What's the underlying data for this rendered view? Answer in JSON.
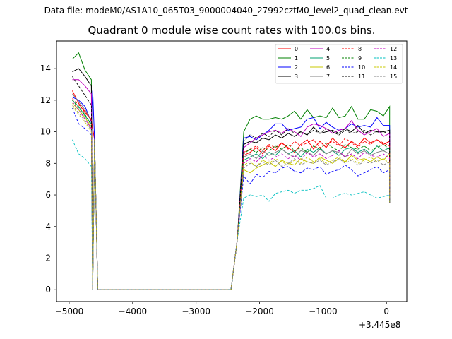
{
  "figure": {
    "suptitle": "Data file: modeM0/AS1A10_065T03_9000004040_27992cztM0_level2_quad_clean.evt",
    "offset_text": "+3.445e8"
  },
  "chart_data": {
    "type": "line",
    "title": "Quadrant 0 module wise count rates with 100.0s bins.",
    "xlabel": "",
    "ylabel": "",
    "x_offset": 344500000,
    "xlim": [
      -5200,
      320
    ],
    "ylim": [
      -0.75,
      15.75
    ],
    "xticks": [
      -5000,
      -4000,
      -3000,
      -2000,
      -1000,
      0
    ],
    "xtick_labels": [
      "−5000",
      "−4000",
      "−3000",
      "−2000",
      "−1000",
      "0"
    ],
    "yticks": [
      0,
      2,
      4,
      6,
      8,
      10,
      12,
      14
    ],
    "ytick_labels": [
      "0",
      "2",
      "4",
      "6",
      "8",
      "10",
      "12",
      "14"
    ],
    "grid": false,
    "legend_position": "top-right",
    "legend_columns": 4,
    "series": [
      {
        "name": "0",
        "color": "#ff0000",
        "dash": "solid",
        "early": [
          12.6,
          11.8,
          11.2,
          10.8,
          10.2
        ],
        "late": [
          8.5,
          8.7,
          9.0,
          8.6,
          9.1,
          8.8,
          9.3,
          9.0,
          8.7,
          9.2,
          9.5,
          8.9,
          9.4,
          9.0,
          9.6,
          9.2,
          9.0,
          9.4,
          9.1,
          9.6,
          9.3,
          9.5,
          9.2,
          9.4,
          9.3,
          9.3
        ]
      },
      {
        "name": "1",
        "color": "#008000",
        "dash": "solid",
        "early": [
          14.6,
          15.0,
          13.9,
          13.3,
          0.0
        ],
        "late": [
          10.0,
          10.8,
          11.0,
          10.8,
          10.8,
          10.9,
          10.8,
          11.0,
          11.3,
          10.8,
          11.4,
          10.9,
          11.0,
          10.9,
          11.5,
          10.9,
          11.0,
          11.6,
          10.8,
          10.8,
          11.4,
          11.3,
          11.0,
          11.6,
          11.2,
          10.9
        ]
      },
      {
        "name": "2",
        "color": "#0000ff",
        "dash": "solid",
        "early": [
          12.2,
          12.0,
          11.6,
          10.6,
          12.6
        ],
        "late": [
          9.6,
          9.7,
          9.5,
          9.8,
          10.1,
          10.5,
          10.5,
          10.1,
          10.2,
          10.3,
          10.8,
          10.9,
          10.2,
          10.6,
          10.3,
          10.1,
          10.2,
          10.5,
          10.3,
          10.4,
          10.3,
          10.9,
          10.4,
          10.4,
          10.4,
          10.4
        ]
      },
      {
        "name": "3",
        "color": "#000000",
        "dash": "solid",
        "early": [
          13.8,
          14.0,
          13.5,
          12.9,
          0.0
        ],
        "late": [
          9.2,
          9.4,
          9.3,
          9.6,
          9.5,
          9.8,
          9.6,
          9.9,
          9.7,
          10.0,
          9.8,
          10.3,
          9.9,
          10.0,
          10.1,
          9.9,
          10.2,
          10.0,
          10.4,
          9.9,
          10.1,
          10.0,
          10.0,
          10.1,
          10.0,
          10.0
        ]
      },
      {
        "name": "4",
        "color": "#bf00bf",
        "dash": "solid",
        "early": [
          13.3,
          13.3,
          12.9,
          12.4,
          0.0
        ],
        "late": [
          9.0,
          9.3,
          9.6,
          9.8,
          10.0,
          10.1,
          9.9,
          10.2,
          10.0,
          9.7,
          10.3,
          10.5,
          10.4,
          10.2,
          9.9,
          10.1,
          10.2,
          10.7,
          10.1,
          9.8,
          10.0,
          10.2,
          9.7,
          9.9,
          9.8,
          9.8
        ]
      },
      {
        "name": "5",
        "color": "#00a070",
        "dash": "solid",
        "early": [
          12.0,
          11.6,
          11.0,
          10.5,
          0.0
        ],
        "late": [
          8.2,
          8.4,
          8.6,
          8.3,
          8.7,
          8.5,
          8.9,
          8.6,
          8.8,
          8.4,
          8.9,
          8.7,
          9.0,
          8.6,
          8.8,
          8.5,
          8.9,
          9.0,
          8.7,
          8.9,
          8.6,
          9.1,
          8.8,
          9.0,
          8.7,
          8.7
        ]
      },
      {
        "name": "6",
        "color": "#c8c800",
        "dash": "solid",
        "early": [
          11.8,
          11.4,
          10.9,
          10.3,
          0.0
        ],
        "late": [
          7.6,
          7.4,
          7.7,
          7.9,
          8.1,
          7.8,
          8.2,
          8.0,
          7.9,
          8.3,
          8.1,
          8.0,
          8.4,
          8.2,
          8.0,
          8.3,
          8.1,
          8.5,
          8.2,
          8.3,
          8.1,
          8.4,
          8.2,
          8.6,
          8.3,
          8.3
        ]
      },
      {
        "name": "7",
        "color": "#808080",
        "dash": "solid",
        "early": [
          12.4,
          11.9,
          11.4,
          10.7,
          0.0
        ],
        "late": [
          8.4,
          8.6,
          8.3,
          8.8,
          8.5,
          8.7,
          8.9,
          8.6,
          8.4,
          8.8,
          8.7,
          8.5,
          8.9,
          8.6,
          8.8,
          8.7,
          8.4,
          8.9,
          8.6,
          8.8,
          8.5,
          8.7,
          8.8,
          8.6,
          8.7,
          8.7
        ]
      },
      {
        "name": "8",
        "color": "#ff0000",
        "dash": "dashed",
        "early": [
          12.1,
          11.7,
          11.3,
          10.7,
          0.0
        ],
        "late": [
          8.7,
          8.9,
          9.1,
          8.8,
          9.2,
          9.0,
          9.3,
          8.9,
          9.4,
          9.1,
          9.3,
          9.5,
          9.0,
          9.2,
          9.4,
          9.1,
          9.6,
          9.3,
          9.0,
          9.4,
          9.2,
          9.5,
          9.3,
          9.1,
          9.2,
          9.2
        ]
      },
      {
        "name": "9",
        "color": "#008000",
        "dash": "dashed",
        "early": [
          12.0,
          11.5,
          11.1,
          10.4,
          0.0
        ],
        "late": [
          8.6,
          8.9,
          8.7,
          9.0,
          8.8,
          9.1,
          8.9,
          9.2,
          8.8,
          9.0,
          8.7,
          9.1,
          8.9,
          9.3,
          9.0,
          8.8,
          9.2,
          9.0,
          8.9,
          9.1,
          8.8,
          9.0,
          9.2,
          8.9,
          9.0,
          9.0
        ]
      },
      {
        "name": "10",
        "color": "#0000ff",
        "dash": "dashed",
        "early": [
          11.5,
          10.5,
          10.2,
          9.8,
          0.0
        ],
        "late": [
          7.2,
          6.7,
          7.3,
          7.1,
          7.5,
          7.4,
          7.7,
          7.8,
          7.5,
          7.4,
          7.7,
          7.6,
          7.8,
          7.3,
          7.5,
          7.6,
          7.9,
          7.6,
          7.2,
          7.4,
          7.6,
          7.8,
          7.4,
          7.6,
          7.5,
          7.5
        ]
      },
      {
        "name": "11",
        "color": "#000000",
        "dash": "dashed",
        "early": [
          13.5,
          12.9,
          12.3,
          11.7,
          0.0
        ],
        "late": [
          9.4,
          9.8,
          9.6,
          9.9,
          9.7,
          10.1,
          9.8,
          10.2,
          9.9,
          10.0,
          9.8,
          10.1,
          9.9,
          10.2,
          10.0,
          9.8,
          10.1,
          9.9,
          10.0,
          10.1,
          9.8,
          10.0,
          9.9,
          10.1,
          9.9,
          9.9
        ]
      },
      {
        "name": "12",
        "color": "#bf00bf",
        "dash": "dashed",
        "early": [
          11.9,
          11.4,
          10.8,
          10.2,
          0.0
        ],
        "late": [
          8.0,
          8.3,
          8.1,
          8.5,
          8.2,
          8.4,
          8.6,
          8.3,
          8.5,
          8.2,
          8.7,
          8.4,
          8.6,
          8.3,
          8.5,
          8.8,
          8.4,
          8.6,
          8.3,
          8.7,
          8.5,
          8.4,
          8.6,
          8.3,
          8.4,
          8.4
        ]
      },
      {
        "name": "13",
        "color": "#00c0c0",
        "dash": "dashed",
        "early": [
          9.5,
          8.6,
          8.3,
          7.8,
          0.0
        ],
        "late": [
          5.8,
          6.0,
          5.9,
          6.0,
          5.6,
          6.1,
          6.2,
          6.3,
          6.1,
          6.3,
          6.3,
          6.4,
          6.6,
          5.8,
          5.8,
          6.0,
          6.1,
          6.0,
          6.1,
          6.2,
          6.0,
          5.8,
          5.9,
          6.0,
          6.2,
          6.2
        ]
      },
      {
        "name": "14",
        "color": "#c8c800",
        "dash": "dashed",
        "early": [
          11.6,
          11.1,
          10.6,
          10.0,
          0.0
        ],
        "late": [
          7.9,
          8.1,
          7.8,
          8.2,
          8.0,
          8.3,
          8.1,
          7.9,
          8.2,
          8.0,
          8.4,
          8.1,
          8.3,
          8.0,
          8.2,
          8.4,
          8.1,
          8.3,
          8.0,
          8.2,
          8.4,
          8.1,
          8.3,
          8.0,
          8.1,
          8.1
        ]
      },
      {
        "name": "15",
        "color": "#808080",
        "dash": "dashed",
        "early": [
          11.7,
          11.2,
          10.7,
          10.1,
          0.0
        ],
        "late": [
          7.7,
          8.0,
          7.8,
          8.1,
          7.9,
          8.2,
          7.8,
          8.0,
          8.3,
          7.9,
          8.1,
          8.0,
          8.2,
          7.9,
          8.1,
          8.3,
          8.0,
          8.2,
          7.9,
          8.1,
          8.0,
          8.2,
          7.9,
          8.1,
          8.0,
          8.0
        ]
      }
    ]
  }
}
